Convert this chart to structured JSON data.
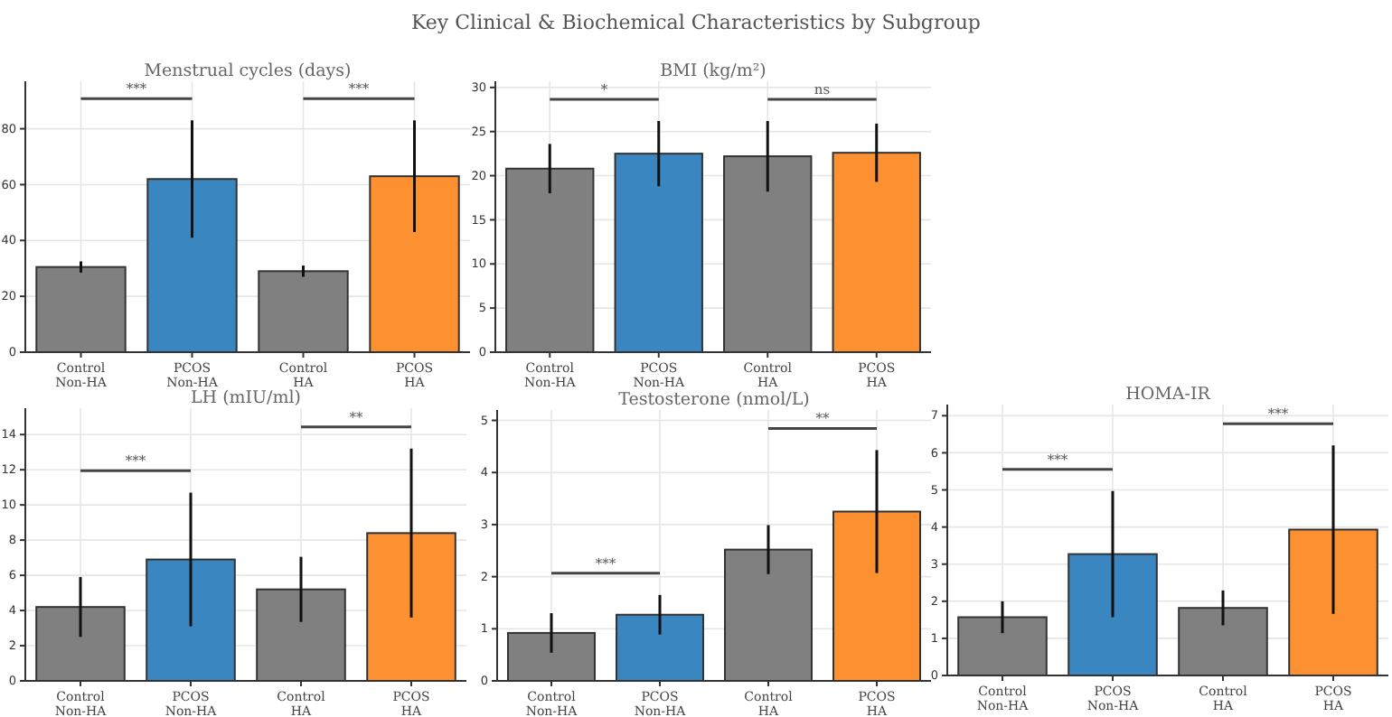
{
  "chart_data": [
    {
      "type": "other",
      "title": "Key Clinical & Biochemical Characteristics by Subgroup"
    },
    {
      "type": "bar",
      "title": "Menstrual cycles (days)",
      "categories": [
        "Control\nNon-HA",
        "PCOS\nNon-HA",
        "Control\nHA",
        "PCOS\nHA"
      ],
      "values": [
        30.5,
        62,
        29,
        63
      ],
      "errors": [
        2,
        21,
        2,
        20
      ],
      "colors": [
        "#808080",
        "#3a86c0",
        "#808080",
        "#fd9030"
      ],
      "ylim": [
        0,
        97
      ],
      "yticks": [
        0,
        20,
        40,
        60,
        80
      ],
      "grid": true,
      "annotations": [
        "***",
        "***"
      ]
    },
    {
      "type": "bar",
      "title": "BMI (kg/m²)",
      "categories": [
        "Control\nNon-HA",
        "PCOS\nNon-HA",
        "Control\nHA",
        "PCOS\nHA"
      ],
      "values": [
        20.8,
        22.5,
        22.2,
        22.6
      ],
      "errors": [
        2.8,
        3.7,
        4,
        3.3
      ],
      "colors": [
        "#808080",
        "#3a86c0",
        "#808080",
        "#fd9030"
      ],
      "ylim": [
        0,
        30.7
      ],
      "yticks": [
        0,
        5,
        10,
        15,
        20,
        25,
        30
      ],
      "grid": true,
      "annotations": [
        "*",
        "ns"
      ]
    },
    {
      "type": "bar",
      "title": "LH (mIU/ml)",
      "categories": [
        "Control\nNon-HA",
        "PCOS\nNon-HA",
        "Control\nHA",
        "PCOS\nHA"
      ],
      "values": [
        4.2,
        6.9,
        5.2,
        8.4
      ],
      "errors": [
        1.7,
        3.8,
        1.85,
        4.8
      ],
      "colors": [
        "#808080",
        "#3a86c0",
        "#808080",
        "#fd9030"
      ],
      "ylim": [
        0,
        15.5
      ],
      "yticks": [
        0,
        2,
        4,
        6,
        8,
        10,
        12,
        14
      ],
      "grid": true,
      "annotations": [
        "***",
        "**"
      ]
    },
    {
      "type": "bar",
      "title": "Testosterone (nmol/L)",
      "categories": [
        "Control\nNon-HA",
        "PCOS\nNon-HA",
        "Control\nHA",
        "PCOS\nHA"
      ],
      "values": [
        0.92,
        1.27,
        2.52,
        3.25
      ],
      "errors": [
        0.38,
        0.38,
        0.47,
        1.18
      ],
      "colors": [
        "#808080",
        "#3a86c0",
        "#808080",
        "#fd9030"
      ],
      "ylim": [
        0,
        5.2
      ],
      "yticks": [
        0,
        1,
        2,
        3,
        4,
        5
      ],
      "grid": true,
      "annotations": [
        "***",
        "**"
      ]
    },
    {
      "type": "bar",
      "title": "HOMA-IR",
      "categories": [
        "Control\nNon-HA",
        "PCOS\nNon-HA",
        "Control\nHA",
        "PCOS\nHA"
      ],
      "values": [
        1.57,
        3.27,
        1.82,
        3.93
      ],
      "errors": [
        0.43,
        1.7,
        0.47,
        2.27
      ],
      "colors": [
        "#808080",
        "#3a86c0",
        "#808080",
        "#fd9030"
      ],
      "ylim": [
        0,
        7.3
      ],
      "yticks": [
        0,
        1,
        2,
        3,
        4,
        5,
        6,
        7
      ],
      "grid": true,
      "annotations": [
        "***",
        "***"
      ]
    }
  ]
}
